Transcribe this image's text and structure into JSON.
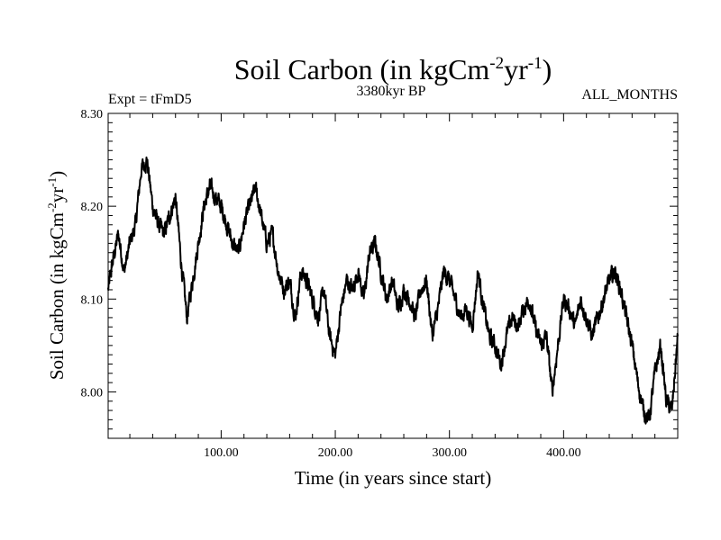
{
  "chart_data": {
    "type": "line",
    "title_main": "Soil Carbon (in kgCm",
    "title_sup1": "-2",
    "title_mid": "yr",
    "title_sup2": "-1",
    "title_end": ")",
    "subtitle_left": "Expt = tFmD5",
    "subtitle_center": "3380kyr BP",
    "subtitle_right": "ALL_MONTHS",
    "xlabel": "Time (in years since start)",
    "ylabel_main": "Soil Carbon (in kgCm",
    "ylabel_sup1": "-2",
    "ylabel_mid": "yr",
    "ylabel_sup2": "-1",
    "ylabel_end": ")",
    "xlim": [
      1,
      500
    ],
    "ylim": [
      7.95,
      8.3
    ],
    "x_ticks": [
      100,
      200,
      300,
      400
    ],
    "x_tick_labels": [
      "100.00",
      "200.00",
      "300.00",
      "400.00"
    ],
    "y_ticks": [
      8.0,
      8.1,
      8.2,
      8.3
    ],
    "y_tick_labels": [
      "8.00",
      "8.10",
      "8.20",
      "8.30"
    ],
    "series_color": "#000000",
    "series": [
      {
        "name": "Soil Carbon",
        "x": [
          1,
          5,
          10,
          15,
          20,
          25,
          30,
          35,
          40,
          45,
          50,
          55,
          60,
          65,
          70,
          75,
          80,
          85,
          90,
          95,
          100,
          105,
          110,
          115,
          120,
          125,
          130,
          135,
          140,
          145,
          150,
          155,
          160,
          165,
          170,
          175,
          180,
          185,
          190,
          195,
          200,
          205,
          210,
          215,
          220,
          225,
          230,
          235,
          240,
          245,
          250,
          255,
          260,
          265,
          270,
          275,
          280,
          285,
          290,
          295,
          300,
          305,
          310,
          315,
          320,
          325,
          330,
          335,
          340,
          345,
          350,
          355,
          360,
          365,
          370,
          375,
          380,
          385,
          390,
          395,
          400,
          405,
          410,
          415,
          420,
          425,
          430,
          435,
          440,
          445,
          450,
          455,
          460,
          465,
          470,
          475,
          480,
          485,
          490,
          495,
          500
        ],
        "values": [
          8.11,
          8.14,
          8.17,
          8.13,
          8.16,
          8.18,
          8.24,
          8.25,
          8.2,
          8.18,
          8.17,
          8.19,
          8.21,
          8.14,
          8.08,
          8.12,
          8.16,
          8.2,
          8.22,
          8.21,
          8.2,
          8.18,
          8.16,
          8.15,
          8.18,
          8.2,
          8.22,
          8.19,
          8.16,
          8.17,
          8.13,
          8.11,
          8.12,
          8.08,
          8.13,
          8.12,
          8.1,
          8.08,
          8.11,
          8.06,
          8.04,
          8.09,
          8.12,
          8.11,
          8.13,
          8.1,
          8.15,
          8.16,
          8.13,
          8.1,
          8.12,
          8.09,
          8.11,
          8.1,
          8.08,
          8.11,
          8.12,
          8.06,
          8.09,
          8.13,
          8.12,
          8.1,
          8.08,
          8.09,
          8.07,
          8.13,
          8.09,
          8.06,
          8.05,
          8.03,
          8.06,
          8.08,
          8.07,
          8.09,
          8.1,
          8.07,
          8.05,
          8.06,
          8.0,
          8.05,
          8.1,
          8.09,
          8.07,
          8.1,
          8.08,
          8.06,
          8.08,
          8.1,
          8.12,
          8.13,
          8.11,
          8.08,
          8.05,
          8.01,
          7.98,
          7.97,
          8.02,
          8.05,
          7.99,
          7.98,
          8.06
        ]
      }
    ]
  }
}
